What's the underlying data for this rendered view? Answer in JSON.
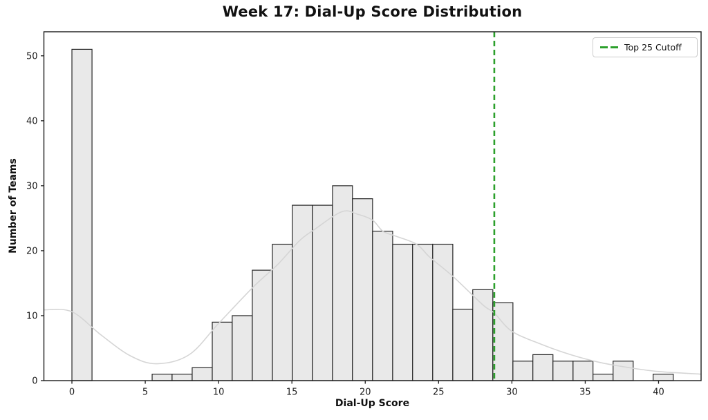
{
  "figure": {
    "background": "#ffffff"
  },
  "chart_data": {
    "type": "bar",
    "subtype": "histogram",
    "title": "Week 17: Dial-Up Score Distribution",
    "xlabel": "Dial-Up Score",
    "ylabel": "Number of Teams",
    "xlim": [
      -1.91,
      42.9
    ],
    "ylim": [
      0,
      53.7
    ],
    "xticks": [
      0,
      5,
      10,
      15,
      20,
      25,
      30,
      35,
      40
    ],
    "yticks": [
      0,
      10,
      20,
      30,
      40,
      50
    ],
    "grid": false,
    "bin_edges": [
      0,
      1.37,
      2.73,
      4.1,
      5.47,
      6.83,
      8.2,
      9.57,
      10.93,
      12.3,
      13.67,
      15.03,
      16.4,
      17.77,
      19.13,
      20.5,
      21.87,
      23.23,
      24.6,
      25.97,
      27.33,
      28.7,
      30.07,
      31.43,
      32.8,
      34.17,
      35.53,
      36.9,
      38.27,
      39.63,
      41
    ],
    "counts": [
      51,
      0,
      0,
      0,
      1,
      1,
      2,
      9,
      10,
      17,
      21,
      27,
      27,
      30,
      28,
      23,
      21,
      21,
      21,
      11,
      14,
      12,
      3,
      4,
      3,
      3,
      1,
      3,
      0,
      1
    ],
    "total_teams": 365,
    "bar_fill": "#e9e9e9",
    "bar_edge": "#262626",
    "kde": {
      "color": "#d5d5d5",
      "x": [
        -1.9,
        0,
        2,
        4,
        5.8,
        8,
        10,
        12.4,
        14,
        15.5,
        16.5,
        18.4,
        19.5,
        20.5,
        21.2,
        22,
        23.5,
        24.4,
        26,
        28,
        28.8,
        30,
        32,
        34,
        36,
        38,
        40,
        42.9
      ],
      "y": [
        10.9,
        10.6,
        7.0,
        3.8,
        2.6,
        4.0,
        8.8,
        14.5,
        17.8,
        21.5,
        23.2,
        26.0,
        25.6,
        24.7,
        23.0,
        22.3,
        21.0,
        19.0,
        16.0,
        11.7,
        10.4,
        7.6,
        5.6,
        4.0,
        2.8,
        2.0,
        1.4,
        1.0
      ]
    },
    "cutoff": {
      "x": 28.8,
      "color": "#2ca02c",
      "style": "dashed",
      "label": "Top 25 Cutoff"
    },
    "legend": {
      "position": "upper right",
      "entries": [
        {
          "label": "Top 25 Cutoff",
          "color": "#2ca02c",
          "dashed": true
        }
      ]
    },
    "axis_color": "#1a1a1a",
    "tick_label_color": "#1a1a1a"
  }
}
